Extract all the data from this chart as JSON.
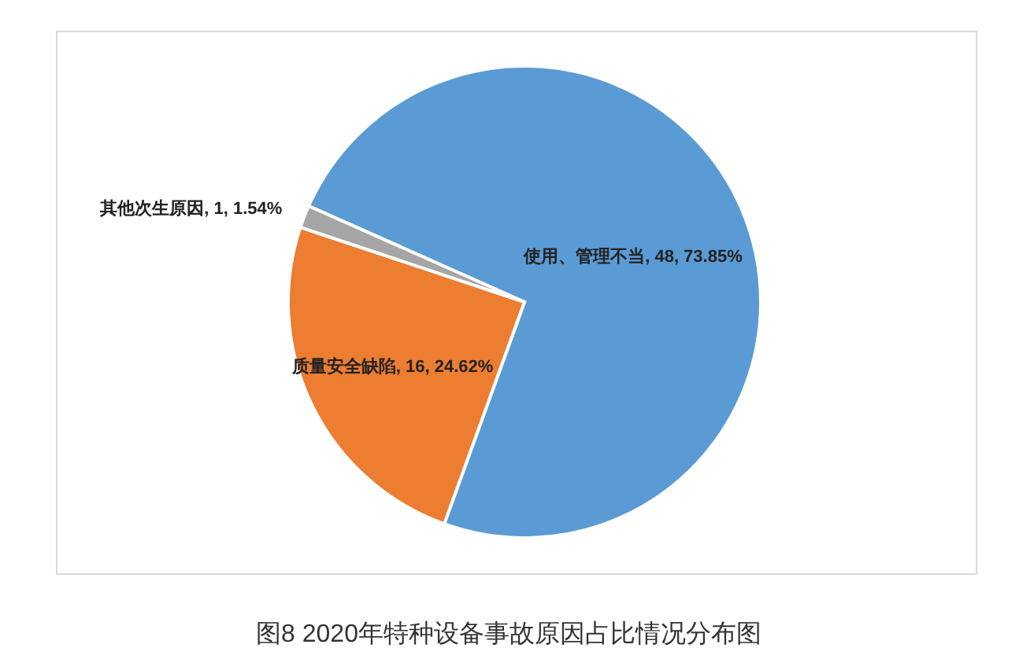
{
  "chart_data": {
    "type": "pie",
    "title": "图8 2020年特种设备事故原因占比情况分布图",
    "categories": [
      "使用、管理不当",
      "质量安全缺陷",
      "其他次生原因"
    ],
    "values": [
      48,
      16,
      1
    ],
    "value_labels": [
      "48, 73.85%",
      "16, 24.62%",
      "1, 1.54%"
    ],
    "colors": [
      "#5b9bd5",
      "#ed7d31",
      "#a5a5a5"
    ]
  }
}
